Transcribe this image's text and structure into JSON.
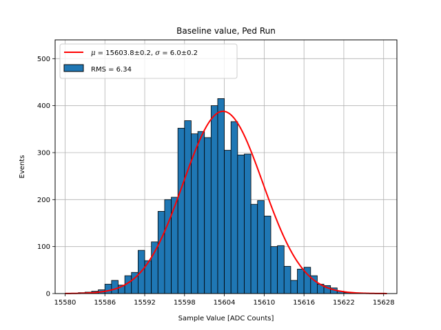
{
  "chart_data": {
    "type": "bar",
    "title": "Baseline value, Ped Run",
    "xlabel": "Sample Value [ADC Counts]",
    "ylabel": "Events",
    "xlim": [
      15578.5,
      15630.0
    ],
    "ylim": [
      0,
      540
    ],
    "xticks": [
      15580,
      15586,
      15592,
      15598,
      15604,
      15610,
      15616,
      15622,
      15628
    ],
    "yticks": [
      0,
      100,
      200,
      300,
      400,
      500
    ],
    "grid": true,
    "legend_position": "top-left",
    "bin_width": 1,
    "bins_start": 15582,
    "bin_values": [
      2,
      3,
      5,
      8,
      20,
      28,
      18,
      38,
      45,
      92,
      70,
      110,
      175,
      200,
      205,
      352,
      368,
      340,
      345,
      332,
      400,
      415,
      305,
      366,
      295,
      297,
      190,
      198,
      165,
      100,
      102,
      58,
      28,
      52,
      56,
      38,
      20,
      17,
      12,
      5,
      2
    ],
    "fit": {
      "label": "$\\mu=15603.8\\pm0.2$, $\\sigma=6.0\\pm0.2$",
      "mu": 15603.8,
      "sigma": 6.0,
      "amplitude": 388,
      "x_range": [
        15580,
        15628.5
      ],
      "color": "#ff0000"
    },
    "histogram_label": "RMS = 6.34",
    "bar_color": "#1f77b4",
    "bar_edge_color": "#000000"
  }
}
